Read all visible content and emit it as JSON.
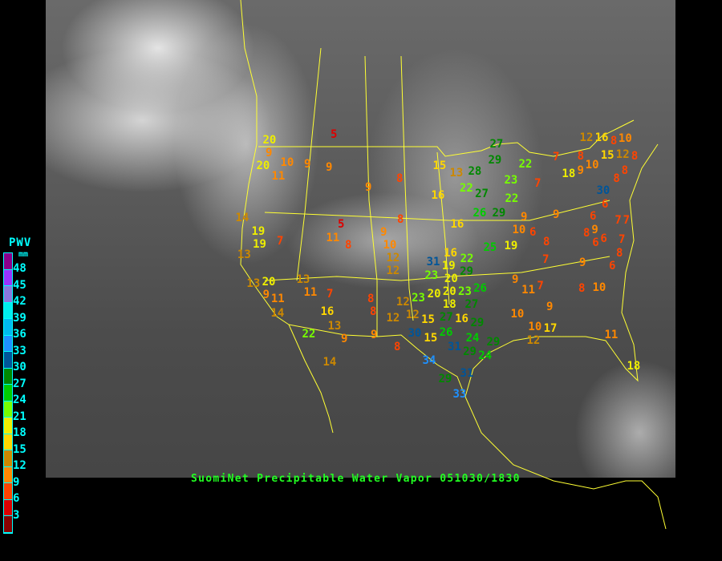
{
  "title": "SuomiNet Precipitable Water Vapor 051030/1830",
  "legend": {
    "title": "PWV",
    "unit": "mm",
    "labels": [
      "48",
      "45",
      "42",
      "39",
      "36",
      "33",
      "30",
      "27",
      "24",
      "21",
      "18",
      "15",
      "12",
      "9",
      "6",
      "3"
    ],
    "colors": [
      "#8b008b",
      "#9933ff",
      "#8877dd",
      "#00eeee",
      "#00bbee",
      "#1e90ff",
      "#005599",
      "#008800",
      "#00cc00",
      "#77ff00",
      "#eeee00",
      "#ffd700",
      "#cc8800",
      "#ff8800",
      "#ff4400",
      "#dd0000",
      "#880000"
    ]
  },
  "stations": [
    5,
    20,
    9,
    20,
    10,
    11,
    9,
    9,
    9,
    8,
    14,
    19,
    19,
    7,
    13,
    5,
    11,
    8,
    9,
    8,
    10,
    12,
    12,
    13,
    20,
    9,
    11,
    14,
    13,
    11,
    7,
    16,
    22,
    13,
    9,
    9,
    8,
    8,
    12,
    8,
    14,
    15,
    13,
    28,
    22,
    27,
    16,
    26,
    29,
    16,
    25,
    19,
    27,
    29,
    22,
    23,
    22,
    9,
    10,
    6,
    8,
    9,
    7,
    7,
    18,
    9,
    10,
    12,
    16,
    10,
    8,
    8,
    15,
    12,
    8,
    8,
    8,
    30,
    6,
    6,
    9,
    8,
    7,
    7,
    6,
    6,
    7,
    8,
    6,
    9,
    7,
    9,
    11,
    7,
    8,
    10,
    9,
    10,
    10,
    12,
    17,
    11,
    18,
    31,
    16,
    22,
    29,
    23,
    19,
    20,
    20,
    20,
    18,
    23,
    26,
    27,
    27,
    23,
    12,
    12,
    15,
    16,
    29,
    30,
    15,
    26,
    24,
    31,
    29,
    29,
    24,
    34,
    29,
    31,
    33,
    32
  ]
}
